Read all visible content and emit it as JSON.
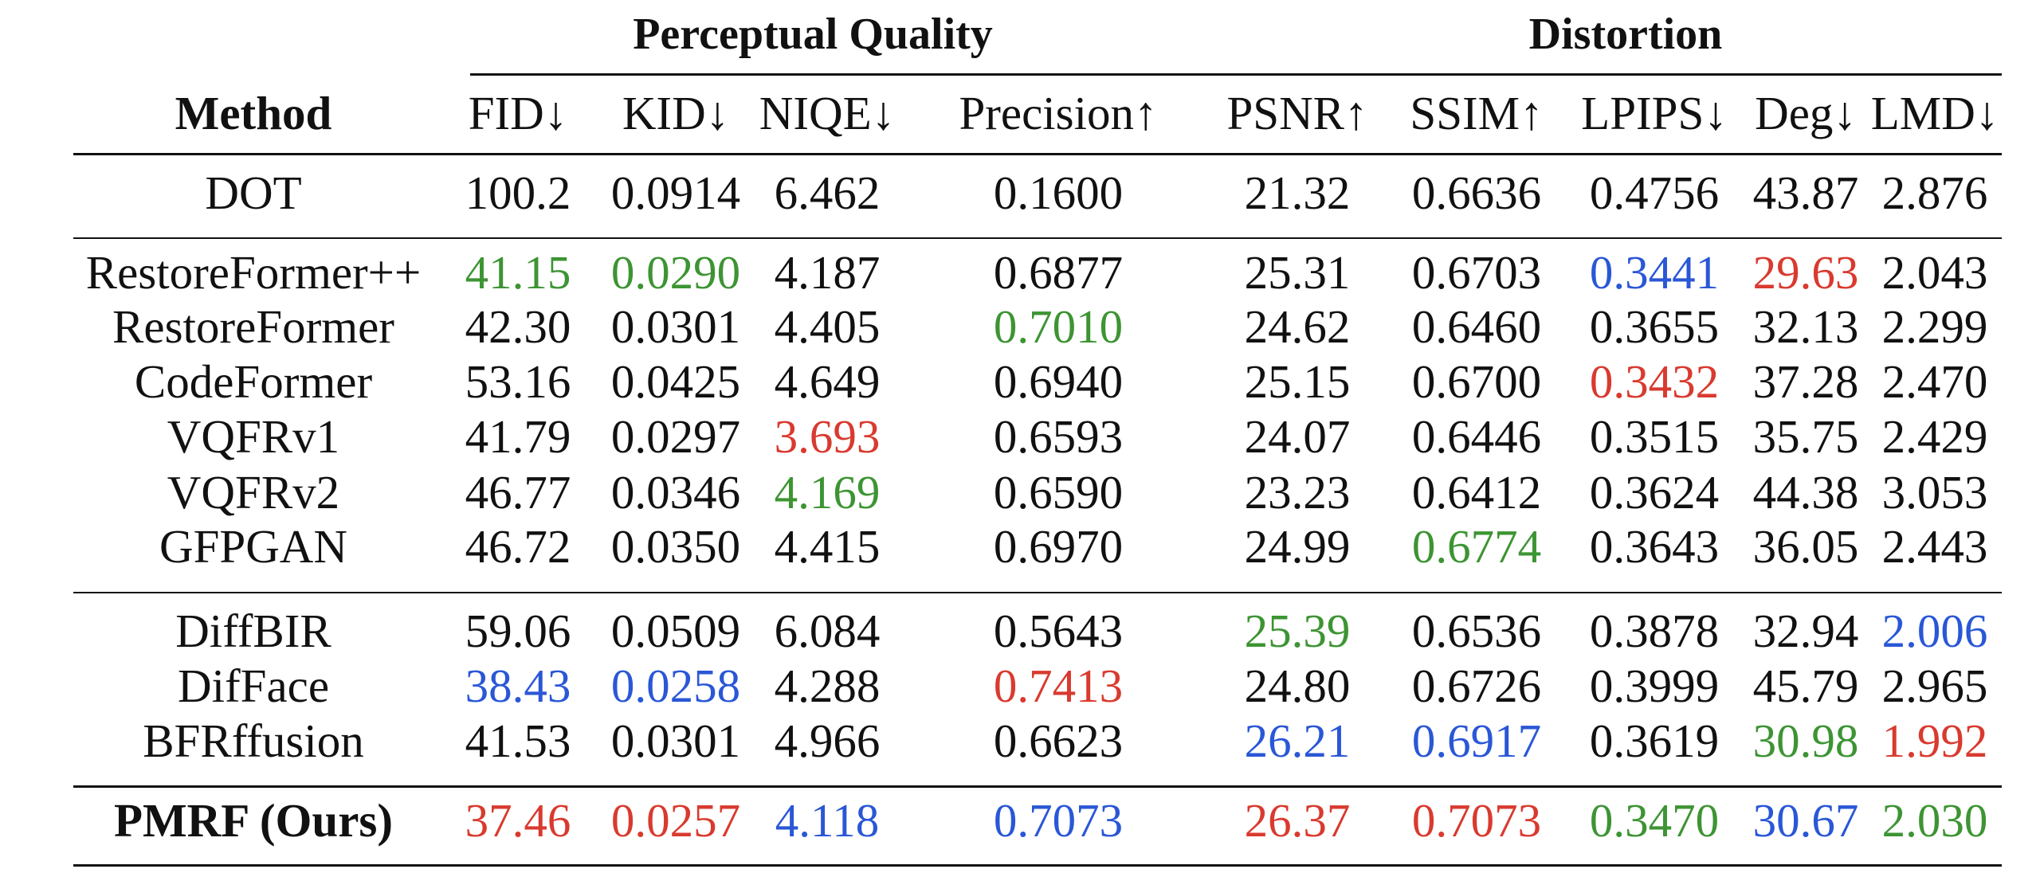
{
  "colors": {
    "best": "#d93a2f",
    "second": "#2a57d6",
    "third": "#3d9433",
    "default": "#111111"
  },
  "group_headers": {
    "perceptual": "Perceptual Quality",
    "distortion": "Distortion"
  },
  "columns": [
    "Method",
    "FID↓",
    "KID↓",
    "NIQE↓",
    "Precision↑",
    "PSNR↑",
    "SSIM↑",
    "LPIPS↓",
    "Deg↓",
    "LMD↓"
  ],
  "rows": [
    {
      "method": "DOT",
      "bold": false,
      "cells": [
        {
          "v": "100.2"
        },
        {
          "v": "0.0914"
        },
        {
          "v": "6.462"
        },
        {
          "v": "0.1600"
        },
        {
          "v": "21.32"
        },
        {
          "v": "0.6636"
        },
        {
          "v": "0.4756"
        },
        {
          "v": "43.87"
        },
        {
          "v": "2.876"
        }
      ]
    },
    {
      "method": "RestoreFormer++",
      "bold": false,
      "cells": [
        {
          "v": "41.15",
          "c": "third"
        },
        {
          "v": "0.0290",
          "c": "third"
        },
        {
          "v": "4.187"
        },
        {
          "v": "0.6877"
        },
        {
          "v": "25.31"
        },
        {
          "v": "0.6703"
        },
        {
          "v": "0.3441",
          "c": "second"
        },
        {
          "v": "29.63",
          "c": "best"
        },
        {
          "v": "2.043"
        }
      ]
    },
    {
      "method": "RestoreFormer",
      "bold": false,
      "cells": [
        {
          "v": "42.30"
        },
        {
          "v": "0.0301"
        },
        {
          "v": "4.405"
        },
        {
          "v": "0.7010",
          "c": "third"
        },
        {
          "v": "24.62"
        },
        {
          "v": "0.6460"
        },
        {
          "v": "0.3655"
        },
        {
          "v": "32.13"
        },
        {
          "v": "2.299"
        }
      ]
    },
    {
      "method": "CodeFormer",
      "bold": false,
      "cells": [
        {
          "v": "53.16"
        },
        {
          "v": "0.0425"
        },
        {
          "v": "4.649"
        },
        {
          "v": "0.6940"
        },
        {
          "v": "25.15"
        },
        {
          "v": "0.6700"
        },
        {
          "v": "0.3432",
          "c": "best"
        },
        {
          "v": "37.28"
        },
        {
          "v": "2.470"
        }
      ]
    },
    {
      "method": "VQFRv1",
      "bold": false,
      "cells": [
        {
          "v": "41.79"
        },
        {
          "v": "0.0297"
        },
        {
          "v": "3.693",
          "c": "best"
        },
        {
          "v": "0.6593"
        },
        {
          "v": "24.07"
        },
        {
          "v": "0.6446"
        },
        {
          "v": "0.3515"
        },
        {
          "v": "35.75"
        },
        {
          "v": "2.429"
        }
      ]
    },
    {
      "method": "VQFRv2",
      "bold": false,
      "cells": [
        {
          "v": "46.77"
        },
        {
          "v": "0.0346"
        },
        {
          "v": "4.169",
          "c": "third"
        },
        {
          "v": "0.6590"
        },
        {
          "v": "23.23"
        },
        {
          "v": "0.6412"
        },
        {
          "v": "0.3624"
        },
        {
          "v": "44.38"
        },
        {
          "v": "3.053"
        }
      ]
    },
    {
      "method": "GFPGAN",
      "bold": false,
      "cells": [
        {
          "v": "46.72"
        },
        {
          "v": "0.0350"
        },
        {
          "v": "4.415"
        },
        {
          "v": "0.6970"
        },
        {
          "v": "24.99"
        },
        {
          "v": "0.6774",
          "c": "third"
        },
        {
          "v": "0.3643"
        },
        {
          "v": "36.05"
        },
        {
          "v": "2.443"
        }
      ]
    },
    {
      "method": "DiffBIR",
      "bold": false,
      "cells": [
        {
          "v": "59.06"
        },
        {
          "v": "0.0509"
        },
        {
          "v": "6.084"
        },
        {
          "v": "0.5643"
        },
        {
          "v": "25.39",
          "c": "third"
        },
        {
          "v": "0.6536"
        },
        {
          "v": "0.3878"
        },
        {
          "v": "32.94"
        },
        {
          "v": "2.006",
          "c": "second"
        }
      ]
    },
    {
      "method": "DifFace",
      "bold": false,
      "cells": [
        {
          "v": "38.43",
          "c": "second"
        },
        {
          "v": "0.0258",
          "c": "second"
        },
        {
          "v": "4.288"
        },
        {
          "v": "0.7413",
          "c": "best"
        },
        {
          "v": "24.80"
        },
        {
          "v": "0.6726"
        },
        {
          "v": "0.3999"
        },
        {
          "v": "45.79"
        },
        {
          "v": "2.965"
        }
      ]
    },
    {
      "method": "BFRffusion",
      "bold": false,
      "cells": [
        {
          "v": "41.53"
        },
        {
          "v": "0.0301"
        },
        {
          "v": "4.966"
        },
        {
          "v": "0.6623"
        },
        {
          "v": "26.21",
          "c": "second"
        },
        {
          "v": "0.6917",
          "c": "second"
        },
        {
          "v": "0.3619"
        },
        {
          "v": "30.98",
          "c": "third"
        },
        {
          "v": "1.992",
          "c": "best"
        }
      ]
    },
    {
      "method": "PMRF (Ours)",
      "bold": true,
      "cells": [
        {
          "v": "37.46",
          "c": "best"
        },
        {
          "v": "0.0257",
          "c": "best"
        },
        {
          "v": "4.118",
          "c": "second"
        },
        {
          "v": "0.7073",
          "c": "second"
        },
        {
          "v": "26.37",
          "c": "best"
        },
        {
          "v": "0.7073",
          "c": "best"
        },
        {
          "v": "0.3470",
          "c": "third"
        },
        {
          "v": "30.67",
          "c": "second"
        },
        {
          "v": "2.030",
          "c": "third"
        }
      ]
    }
  ]
}
